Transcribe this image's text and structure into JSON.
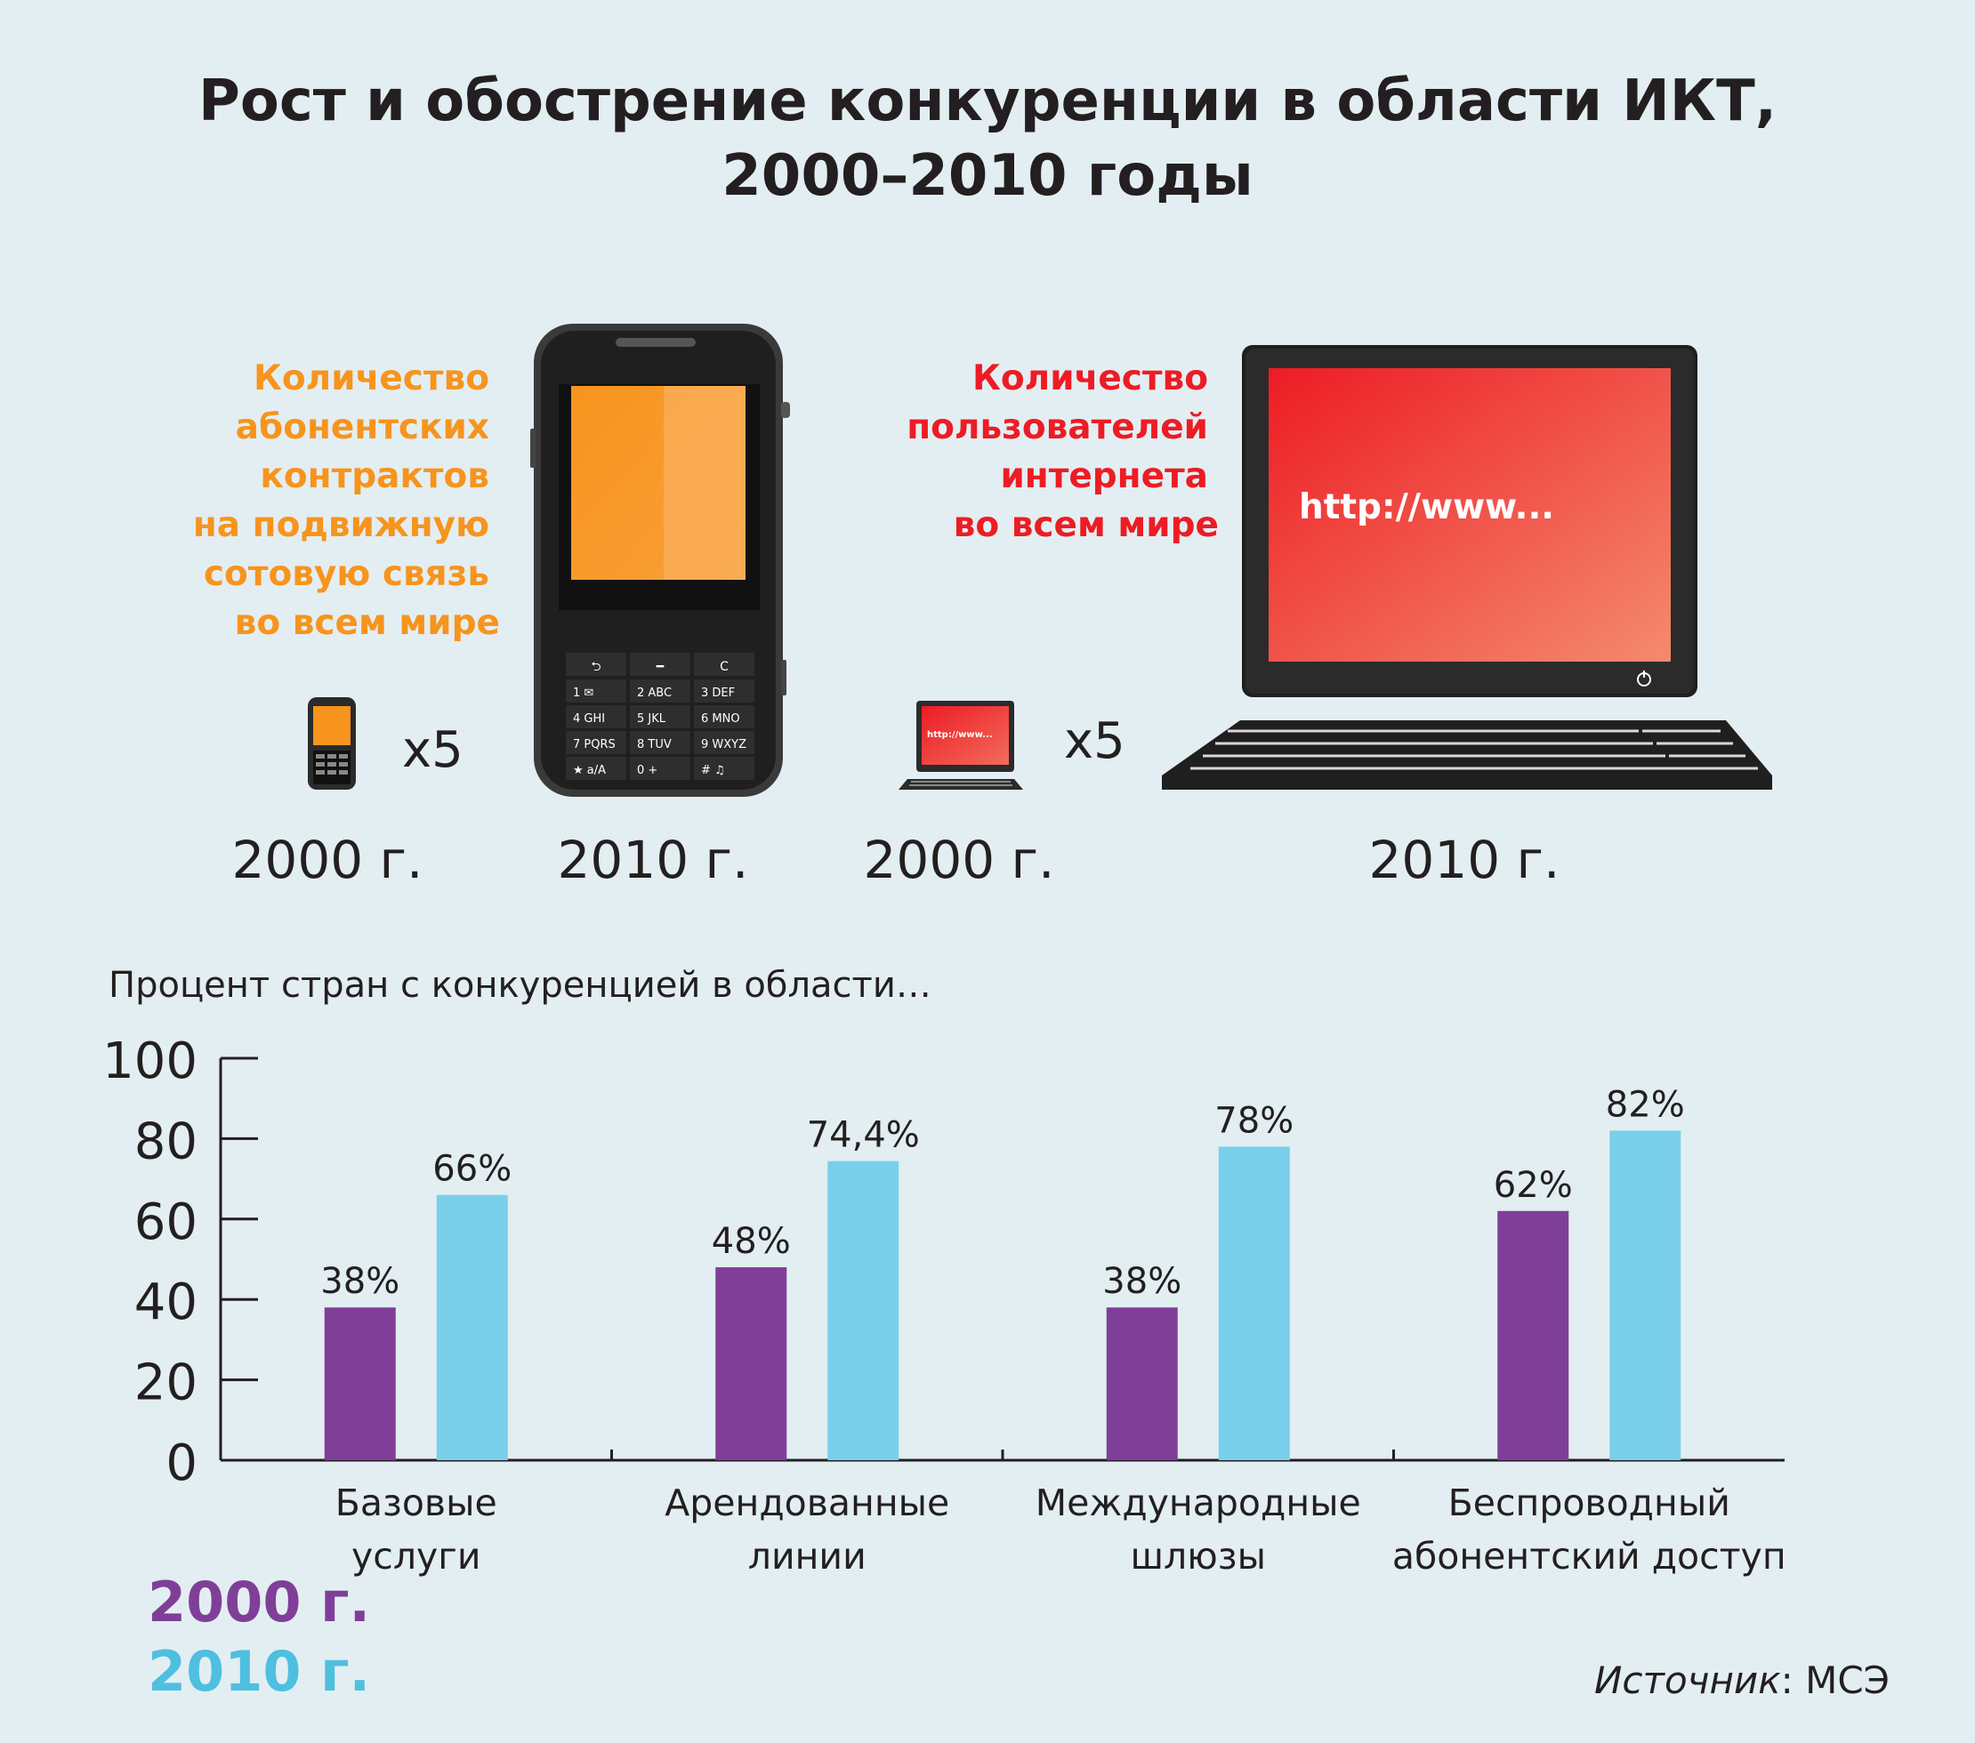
{
  "title_line1": "Рост и обострение конкуренции в области ИКТ,",
  "title_line2": "2000–2010 годы",
  "mobile": {
    "caption": [
      "Количество",
      "абонентских",
      "контрактов",
      "на подвижную",
      "сотовую связь",
      "во всем мире"
    ],
    "multiplier": "x5",
    "year_before": "2000 г.",
    "year_after": "2010 г.",
    "color": "#f7941d",
    "keypad": [
      "1 ✉",
      "2 ABC",
      "3 DEF",
      "4 GHI",
      "5 JKL",
      "6 MNO",
      "7 PQRS",
      "8 TUV",
      "9 WXYZ",
      "★ a/A",
      "0 +",
      "# ♫"
    ]
  },
  "internet": {
    "caption": [
      "Количество",
      "пользователей",
      "интернета",
      "во всем мире"
    ],
    "multiplier": "x5",
    "year_before": "2000 г.",
    "year_after": "2010 г.",
    "screen_text": "http://www...",
    "small_screen_text": "http://www...",
    "color": "#ed1c24"
  },
  "subtitle": "Процент стран с конкуренцией в области…",
  "chart_data": {
    "type": "bar",
    "categories": [
      [
        "Базовые",
        "услуги"
      ],
      [
        "Арендованные",
        "линии"
      ],
      [
        "Международные",
        "шлюзы"
      ],
      [
        "Беспроводный",
        "абонентский доступ"
      ]
    ],
    "series": [
      {
        "name": "2000 г.",
        "values": [
          38,
          48,
          38,
          62
        ],
        "labels": [
          "38%",
          "48%",
          "38%",
          "62%"
        ],
        "color": "#7f3f98"
      },
      {
        "name": "2010 г.",
        "values": [
          66,
          74.4,
          78,
          82
        ],
        "labels": [
          "66%",
          "74,4%",
          "78%",
          "82%"
        ],
        "color": "#7acfea"
      }
    ],
    "yticks": [
      0,
      20,
      40,
      60,
      80,
      100
    ],
    "ylim": [
      0,
      100
    ],
    "legend_position": "bottom-left"
  },
  "legend": [
    "2000 г.",
    "2010 г."
  ],
  "source_label": "Источник",
  "source_value": ": МСЭ"
}
